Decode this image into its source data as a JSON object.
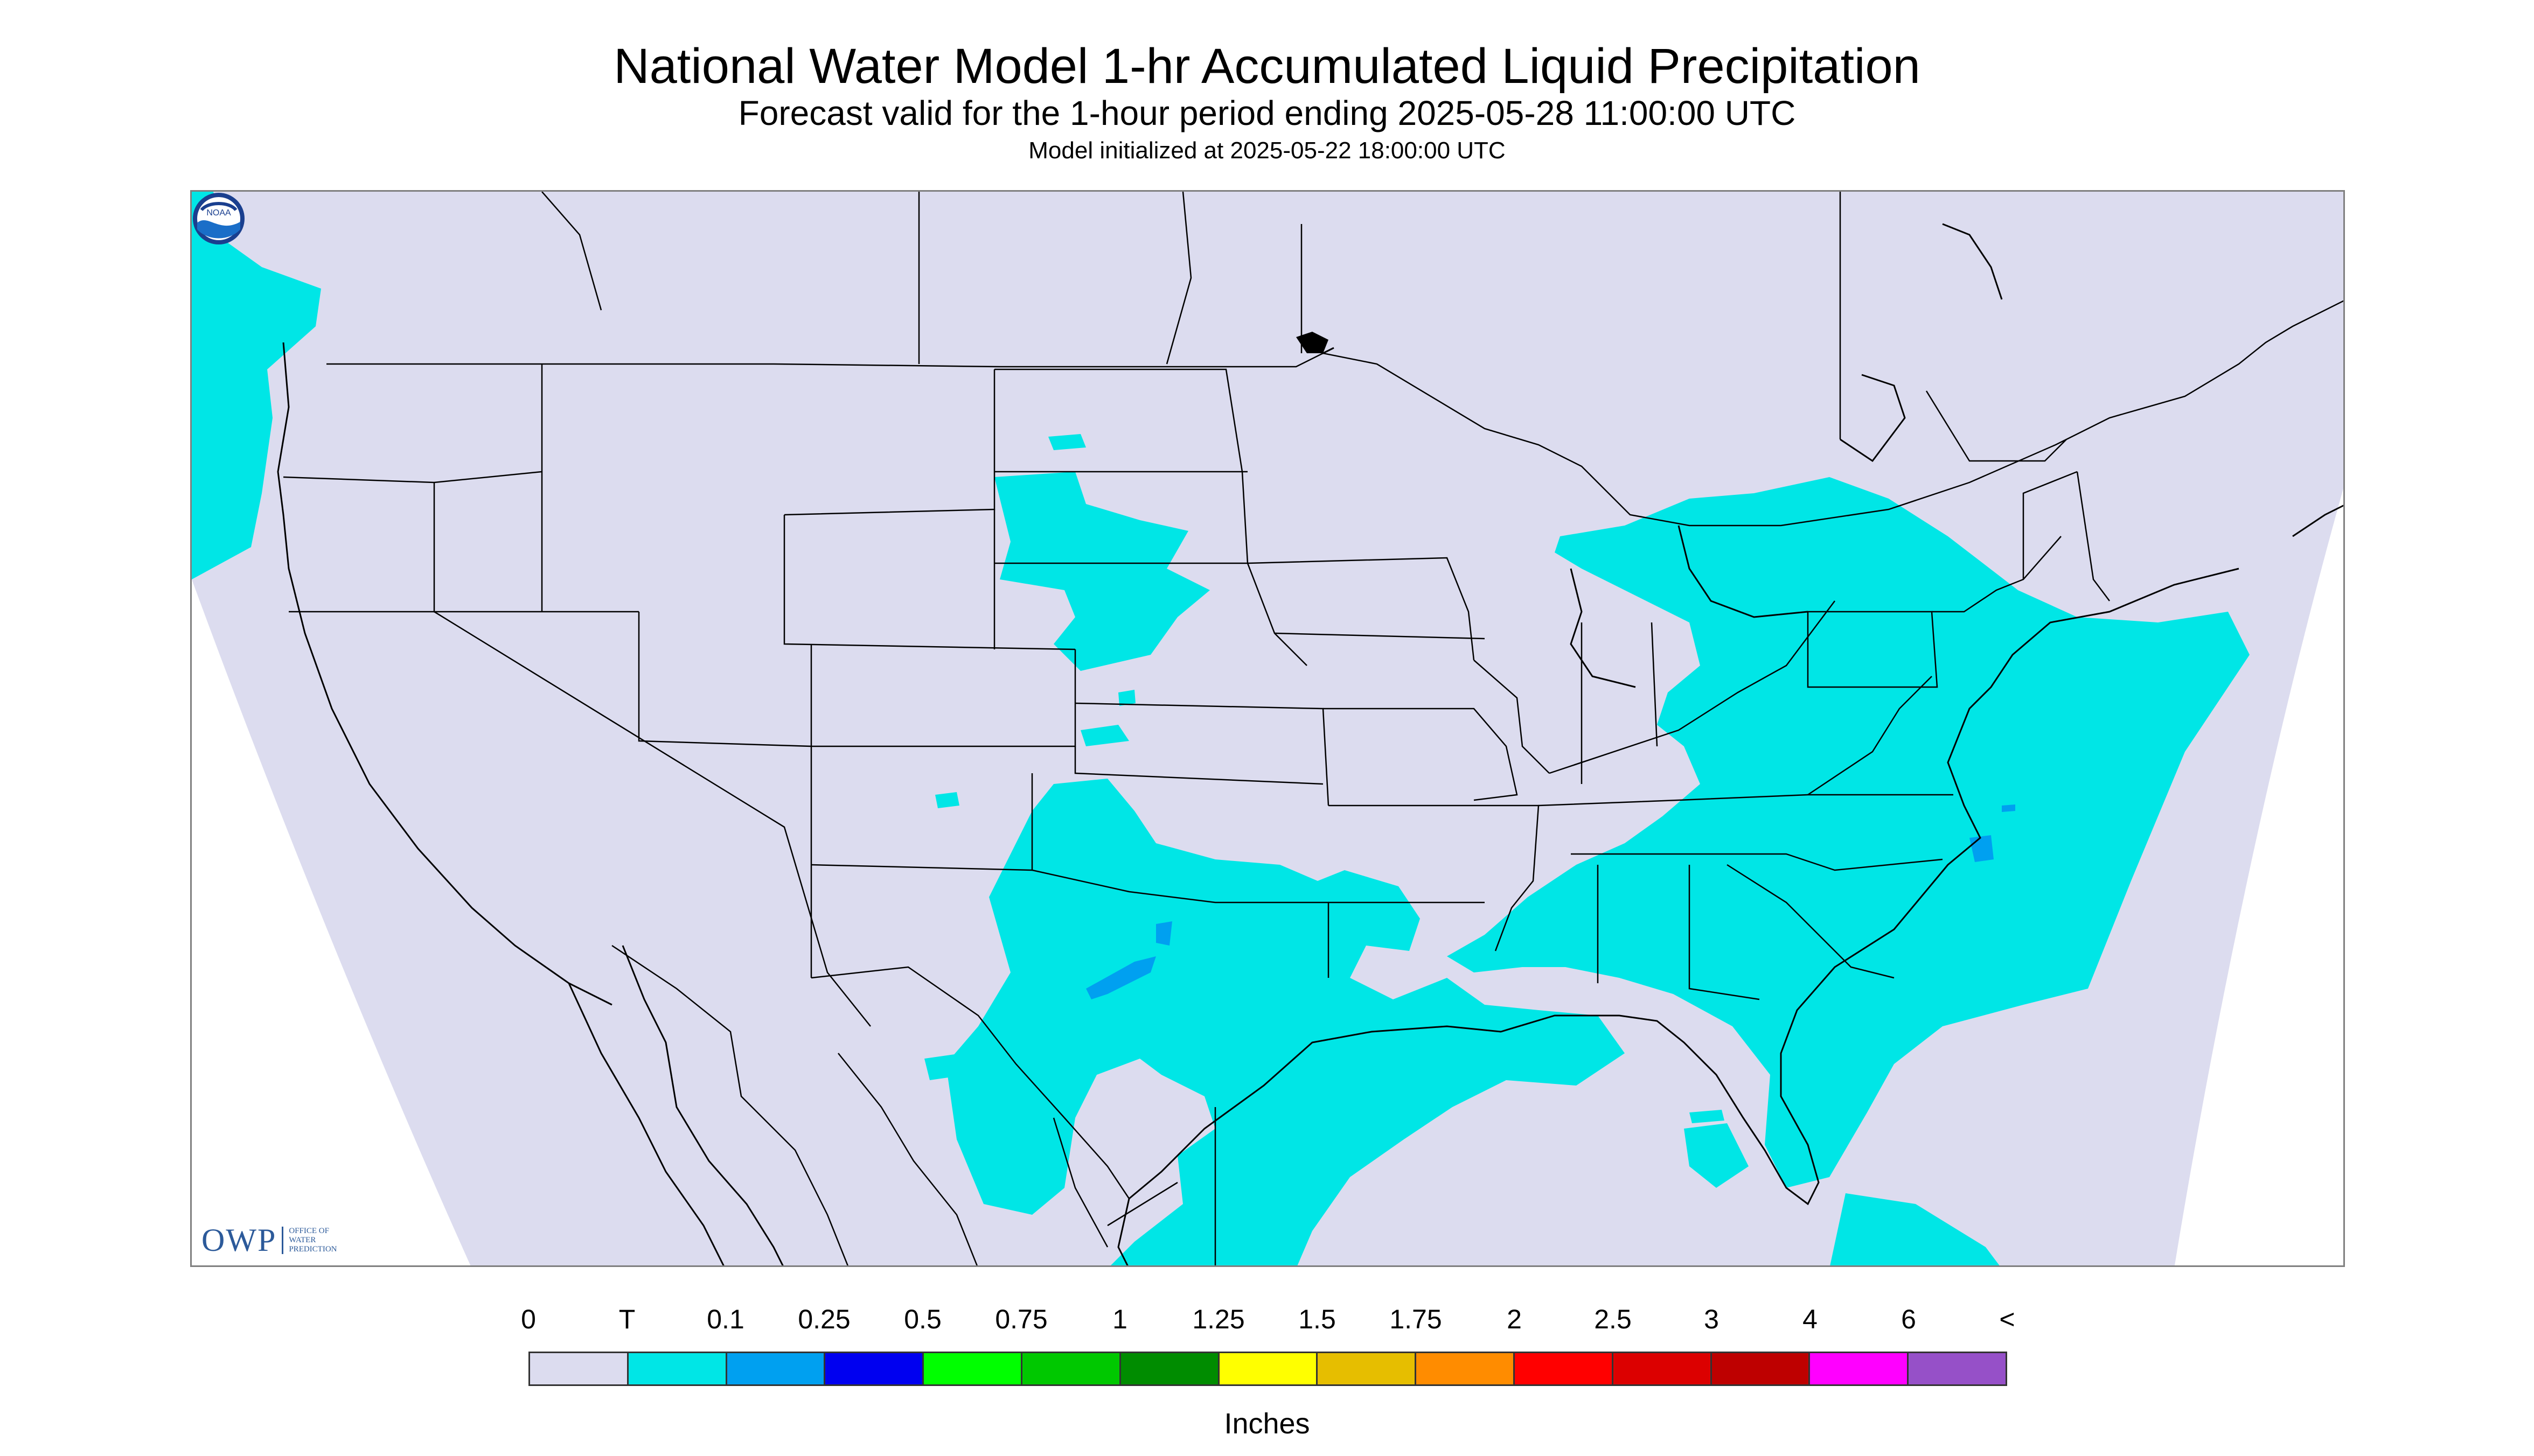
{
  "title": "National Water Model 1-hr Accumulated Liquid Precipitation",
  "subtitle": "Forecast valid for the 1-hour period ending 2025-05-28 11:00:00 UTC",
  "init": "Model initialized at 2025-05-22 18:00:00 UTC",
  "logos": {
    "owp_big": "OWP",
    "owp_small": [
      "OFFICE OF",
      "WATER",
      "PREDICTION"
    ],
    "noaa": "NOAA"
  },
  "legend": {
    "labels": [
      "0",
      "T",
      "0.1",
      "0.25",
      "0.5",
      "0.75",
      "1",
      "1.25",
      "1.5",
      "1.75",
      "2",
      "2.5",
      "3",
      "4",
      "6",
      "<"
    ],
    "colors": [
      "#dcdcef",
      "#00e6e6",
      "#00a0f0",
      "#0000f0",
      "#00ff00",
      "#00c800",
      "#008c00",
      "#ffff00",
      "#e6be00",
      "#ff8c00",
      "#ff0000",
      "#dc0000",
      "#be0000",
      "#ff00ff",
      "#9650c8"
    ],
    "units": "Inches"
  },
  "map_colors": {
    "domain": "#dcdcef",
    "outside": "#ffffff",
    "trace": "#00e6e6",
    "light": "#00a0f0",
    "borders": "#000000"
  }
}
